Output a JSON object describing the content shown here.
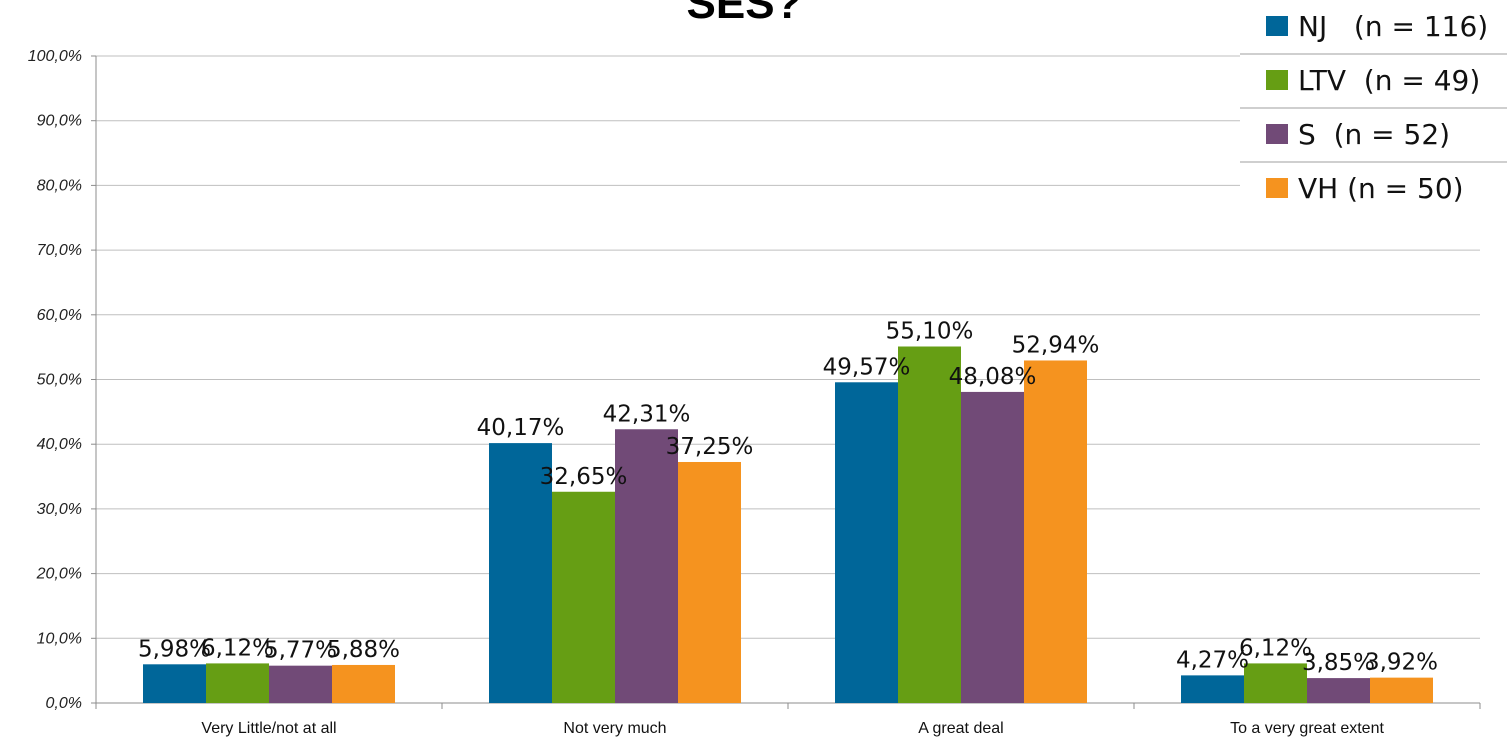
{
  "chart_data": {
    "type": "bar",
    "title": "SES?",
    "xlabel": "",
    "ylabel": "",
    "ylim": [
      0,
      100
    ],
    "y_ticks": [
      "0,0%",
      "10,0%",
      "20,0%",
      "30,0%",
      "40,0%",
      "50,0%",
      "60,0%",
      "70,0%",
      "80,0%",
      "90,0%",
      "100,0%"
    ],
    "categories": [
      "Very Little/not at all",
      "Not very much",
      "A great deal",
      "To a very great extent"
    ],
    "series": [
      {
        "name": "NJ   (n = 116)",
        "color": "#006699",
        "values": [
          5.98,
          40.17,
          49.57,
          4.27
        ],
        "labels": [
          "5,98%",
          "40,17%",
          "49,57%",
          "4,27%"
        ]
      },
      {
        "name": "LTV  (n = 49)",
        "color": "#669E14",
        "values": [
          6.12,
          32.65,
          55.1,
          6.12
        ],
        "labels": [
          "6,12%",
          "32,65%",
          "55,10%",
          "6,12%"
        ]
      },
      {
        "name": "S  (n = 52)",
        "color": "#714A77",
        "values": [
          5.77,
          42.31,
          48.08,
          3.85
        ],
        "labels": [
          "5,77%",
          "42,31%",
          "48,08%",
          "3,85%"
        ]
      },
      {
        "name": "VH (n = 50)",
        "color": "#F5931F",
        "values": [
          5.88,
          37.25,
          52.94,
          3.92
        ],
        "labels": [
          "5,88%",
          "37,25%",
          "52,94%",
          "3,92%"
        ]
      }
    ],
    "grid": true,
    "legend_position": "top-right"
  }
}
